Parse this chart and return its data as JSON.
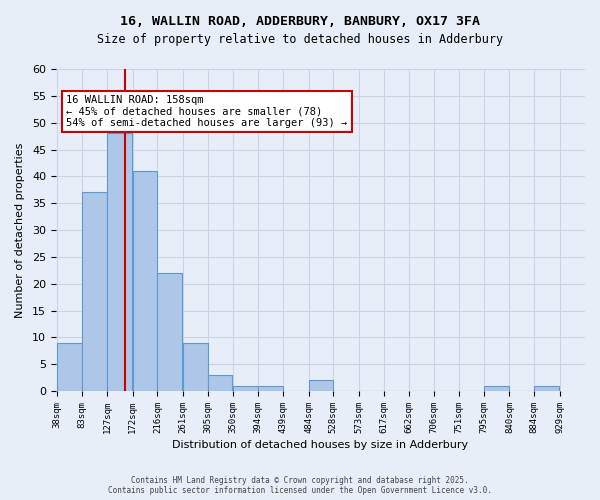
{
  "title_line1": "16, WALLIN ROAD, ADDERBURY, BANBURY, OX17 3FA",
  "title_line2": "Size of property relative to detached houses in Adderbury",
  "xlabel": "Distribution of detached houses by size in Adderbury",
  "ylabel": "Number of detached properties",
  "bin_edges": [
    38,
    83,
    127,
    172,
    216,
    261,
    305,
    350,
    394,
    439,
    484,
    528,
    573,
    617,
    662,
    706,
    751,
    795,
    840,
    884,
    929
  ],
  "counts": [
    9,
    37,
    48,
    41,
    22,
    9,
    3,
    1,
    1,
    0,
    2,
    0,
    0,
    0,
    0,
    0,
    0,
    1,
    0,
    1
  ],
  "bar_color": "#aec6e8",
  "bar_edge_color": "#5b9bd5",
  "red_line_x": 158,
  "annotation_title": "16 WALLIN ROAD: 158sqm",
  "annotation_line2": "← 45% of detached houses are smaller (78)",
  "annotation_line3": "54% of semi-detached houses are larger (93) →",
  "annotation_box_color": "#ffffff",
  "annotation_box_edge": "#cc0000",
  "red_line_color": "#cc0000",
  "ylim": [
    0,
    60
  ],
  "yticks": [
    0,
    5,
    10,
    15,
    20,
    25,
    30,
    35,
    40,
    45,
    50,
    55,
    60
  ],
  "grid_color": "#c8d4e8",
  "background_color": "#e8eef8",
  "footer_line1": "Contains HM Land Registry data © Crown copyright and database right 2025.",
  "footer_line2": "Contains public sector information licensed under the Open Government Licence v3.0."
}
